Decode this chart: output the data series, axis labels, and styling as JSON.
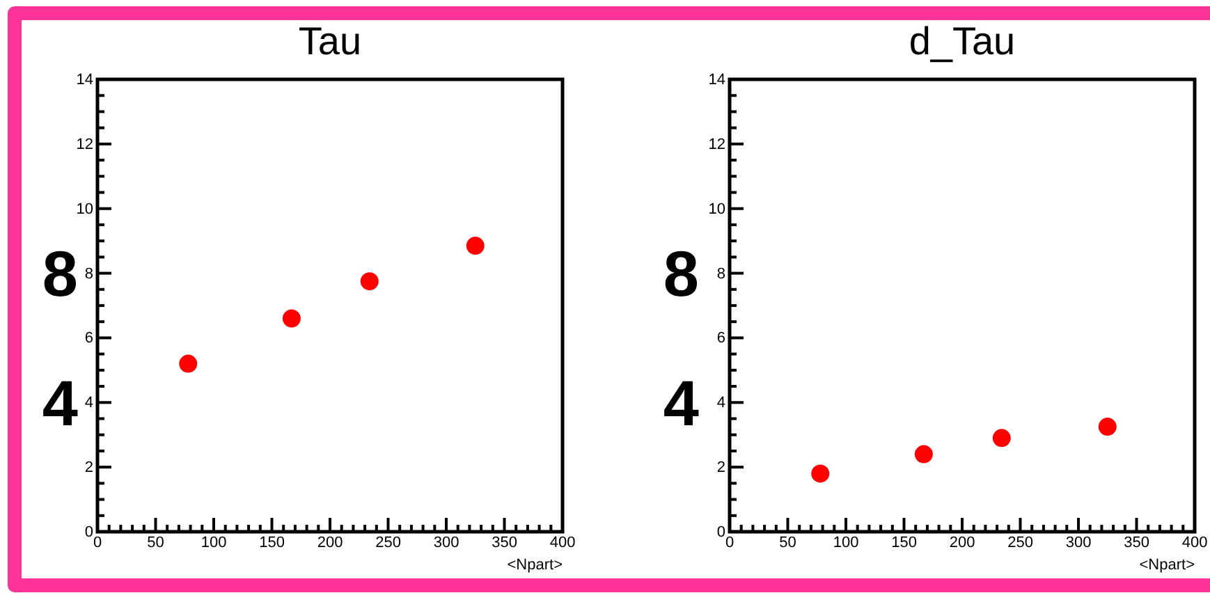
{
  "chart_data": [
    {
      "type": "scatter",
      "title": "Tau",
      "xlabel": "<Npart>",
      "x": [
        78,
        167,
        234,
        325
      ],
      "values": [
        5.2,
        6.6,
        7.75,
        8.85
      ],
      "color": "#ff0000",
      "marker": "circle",
      "xlim": [
        0,
        400
      ],
      "ylim": [
        0,
        14
      ],
      "xticks": [
        0,
        {
          "value": 10,
          "label": null
        },
        {
          "value": 20,
          "label": null
        },
        {
          "value": 30,
          "label": null
        },
        {
          "value": 40,
          "label": null
        },
        50,
        {
          "value": 60,
          "label": null
        },
        {
          "value": 70,
          "label": null
        },
        {
          "value": 80,
          "label": null
        },
        {
          "value": 90,
          "label": null
        },
        100,
        {
          "value": 110,
          "label": null
        },
        {
          "value": 120,
          "label": null
        },
        {
          "value": 130,
          "label": null
        },
        {
          "value": 140,
          "label": null
        },
        150,
        {
          "value": 160,
          "label": null
        },
        {
          "value": 170,
          "label": null
        },
        {
          "value": 180,
          "label": null
        },
        {
          "value": 190,
          "label": null
        },
        200,
        {
          "value": 210,
          "label": null
        },
        {
          "value": 220,
          "label": null
        },
        {
          "value": 230,
          "label": null
        },
        {
          "value": 240,
          "label": null
        },
        250,
        {
          "value": 260,
          "label": null
        },
        {
          "value": 270,
          "label": null
        },
        {
          "value": 280,
          "label": null
        },
        {
          "value": 290,
          "label": null
        },
        300,
        {
          "value": 310,
          "label": null
        },
        {
          "value": 320,
          "label": null
        },
        {
          "value": 330,
          "label": null
        },
        {
          "value": 340,
          "label": null
        },
        350,
        {
          "value": 360,
          "label": null
        },
        {
          "value": 370,
          "label": null
        },
        {
          "value": 380,
          "label": null
        },
        {
          "value": 390,
          "label": null
        },
        400
      ],
      "yticks": [
        0,
        {
          "value": 0.5,
          "label": null
        },
        {
          "value": 1,
          "label": null
        },
        {
          "value": 1.5,
          "label": null
        },
        2,
        {
          "value": 2.5,
          "label": null
        },
        {
          "value": 3,
          "label": null
        },
        {
          "value": 3.5,
          "label": null
        },
        4,
        {
          "value": 4.5,
          "label": null
        },
        {
          "value": 5,
          "label": null
        },
        {
          "value": 5.5,
          "label": null
        },
        6,
        {
          "value": 6.5,
          "label": null
        },
        {
          "value": 7,
          "label": null
        },
        {
          "value": 7.5,
          "label": null
        },
        8,
        {
          "value": 8.5,
          "label": null
        },
        {
          "value": 9,
          "label": null
        },
        {
          "value": 9.5,
          "label": null
        },
        10,
        {
          "value": 10.5,
          "label": null
        },
        {
          "value": 11,
          "label": null
        },
        {
          "value": 11.5,
          "label": null
        },
        12,
        {
          "value": 12.5,
          "label": null
        },
        {
          "value": 13,
          "label": null
        },
        {
          "value": 13.5,
          "label": null
        },
        14
      ],
      "annotations": [
        "8",
        "4"
      ]
    },
    {
      "type": "scatter",
      "title": "d_Tau",
      "xlabel": "<Npart>",
      "x": [
        78,
        167,
        234,
        325
      ],
      "values": [
        1.8,
        2.4,
        2.9,
        3.25
      ],
      "color": "#ff0000",
      "marker": "circle",
      "xlim": [
        0,
        400
      ],
      "ylim": [
        0,
        14
      ],
      "xticks": [
        0,
        {
          "value": 10,
          "label": null
        },
        {
          "value": 20,
          "label": null
        },
        {
          "value": 30,
          "label": null
        },
        {
          "value": 40,
          "label": null
        },
        50,
        {
          "value": 60,
          "label": null
        },
        {
          "value": 70,
          "label": null
        },
        {
          "value": 80,
          "label": null
        },
        {
          "value": 90,
          "label": null
        },
        100,
        {
          "value": 110,
          "label": null
        },
        {
          "value": 120,
          "label": null
        },
        {
          "value": 130,
          "label": null
        },
        {
          "value": 140,
          "label": null
        },
        150,
        {
          "value": 160,
          "label": null
        },
        {
          "value": 170,
          "label": null
        },
        {
          "value": 180,
          "label": null
        },
        {
          "value": 190,
          "label": null
        },
        200,
        {
          "value": 210,
          "label": null
        },
        {
          "value": 220,
          "label": null
        },
        {
          "value": 230,
          "label": null
        },
        {
          "value": 240,
          "label": null
        },
        250,
        {
          "value": 260,
          "label": null
        },
        {
          "value": 270,
          "label": null
        },
        {
          "value": 280,
          "label": null
        },
        {
          "value": 290,
          "label": null
        },
        300,
        {
          "value": 310,
          "label": null
        },
        {
          "value": 320,
          "label": null
        },
        {
          "value": 330,
          "label": null
        },
        {
          "value": 340,
          "label": null
        },
        350,
        {
          "value": 360,
          "label": null
        },
        {
          "value": 370,
          "label": null
        },
        {
          "value": 380,
          "label": null
        },
        {
          "value": 390,
          "label": null
        },
        400
      ],
      "yticks": [
        0,
        {
          "value": 0.5,
          "label": null
        },
        {
          "value": 1,
          "label": null
        },
        {
          "value": 1.5,
          "label": null
        },
        2,
        {
          "value": 2.5,
          "label": null
        },
        {
          "value": 3,
          "label": null
        },
        {
          "value": 3.5,
          "label": null
        },
        4,
        {
          "value": 4.5,
          "label": null
        },
        {
          "value": 5,
          "label": null
        },
        {
          "value": 5.5,
          "label": null
        },
        6,
        {
          "value": 6.5,
          "label": null
        },
        {
          "value": 7,
          "label": null
        },
        {
          "value": 7.5,
          "label": null
        },
        8,
        {
          "value": 8.5,
          "label": null
        },
        {
          "value": 9,
          "label": null
        },
        {
          "value": 9.5,
          "label": null
        },
        10,
        {
          "value": 10.5,
          "label": null
        },
        {
          "value": 11,
          "label": null
        },
        {
          "value": 11.5,
          "label": null
        },
        12,
        {
          "value": 12.5,
          "label": null
        },
        {
          "value": 13,
          "label": null
        },
        {
          "value": 13.5,
          "label": null
        },
        14
      ],
      "annotations": [
        "8",
        "4"
      ]
    }
  ]
}
